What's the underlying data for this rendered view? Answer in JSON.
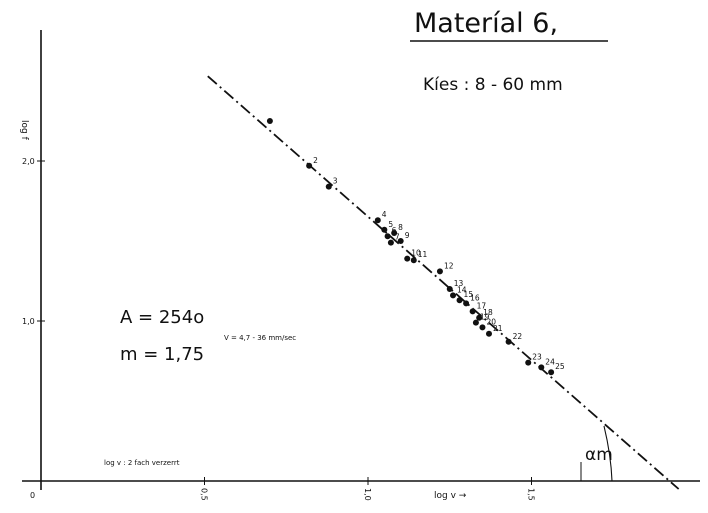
{
  "chart_data": {
    "type": "scatter",
    "title": "Materíal 6,",
    "subtitle": "Kíes : 8 - 60 mm",
    "xlabel": "log v →",
    "ylabel": "log f",
    "xlim": [
      0,
      1.95
    ],
    "ylim": [
      0,
      2.5
    ],
    "x_ticks": [
      {
        "value": 0,
        "label": "0"
      },
      {
        "value": 0.5,
        "label": "0,5"
      },
      {
        "value": 1.0,
        "label": "1,0"
      },
      {
        "value": 1.5,
        "label": "1,5"
      }
    ],
    "y_ticks": [
      {
        "value": 1.0,
        "label": "1,0"
      },
      {
        "value": 2.0,
        "label": "2,0"
      }
    ],
    "annotations": {
      "A": "A = 254o",
      "m": "m = 1,75",
      "v_range": "V = 4,7 - 36 mm/sec",
      "note": "log v : 2 fach verzerrt",
      "angle": "αm"
    },
    "fit_line": {
      "x": [
        0.51,
        1.95
      ],
      "y": [
        2.53,
        -0.05
      ],
      "style": "dash-dot"
    },
    "points": [
      {
        "x": 0.7,
        "y": 2.25,
        "label": ""
      },
      {
        "x": 0.82,
        "y": 1.97,
        "label": "2"
      },
      {
        "x": 0.88,
        "y": 1.84,
        "label": "3"
      },
      {
        "x": 1.03,
        "y": 1.63,
        "label": "4"
      },
      {
        "x": 1.05,
        "y": 1.57,
        "label": "5"
      },
      {
        "x": 1.06,
        "y": 1.53,
        "label": "6"
      },
      {
        "x": 1.08,
        "y": 1.55,
        "label": "8"
      },
      {
        "x": 1.07,
        "y": 1.49,
        "label": "7"
      },
      {
        "x": 1.1,
        "y": 1.5,
        "label": "9"
      },
      {
        "x": 1.12,
        "y": 1.39,
        "label": "10"
      },
      {
        "x": 1.14,
        "y": 1.38,
        "label": "11"
      },
      {
        "x": 1.22,
        "y": 1.31,
        "label": "12"
      },
      {
        "x": 1.25,
        "y": 1.2,
        "label": "13"
      },
      {
        "x": 1.26,
        "y": 1.16,
        "label": "14"
      },
      {
        "x": 1.28,
        "y": 1.13,
        "label": "15"
      },
      {
        "x": 1.3,
        "y": 1.11,
        "label": "16"
      },
      {
        "x": 1.32,
        "y": 1.06,
        "label": "17"
      },
      {
        "x": 1.34,
        "y": 1.02,
        "label": "18"
      },
      {
        "x": 1.33,
        "y": 0.99,
        "label": "19"
      },
      {
        "x": 1.35,
        "y": 0.96,
        "label": "20"
      },
      {
        "x": 1.37,
        "y": 0.92,
        "label": "21"
      },
      {
        "x": 1.43,
        "y": 0.87,
        "label": "22"
      },
      {
        "x": 1.49,
        "y": 0.74,
        "label": "23"
      },
      {
        "x": 1.53,
        "y": 0.71,
        "label": "24"
      },
      {
        "x": 1.56,
        "y": 0.68,
        "label": "25"
      }
    ],
    "grid": false,
    "legend": "none",
    "colors": {
      "ink": "#111111"
    }
  }
}
